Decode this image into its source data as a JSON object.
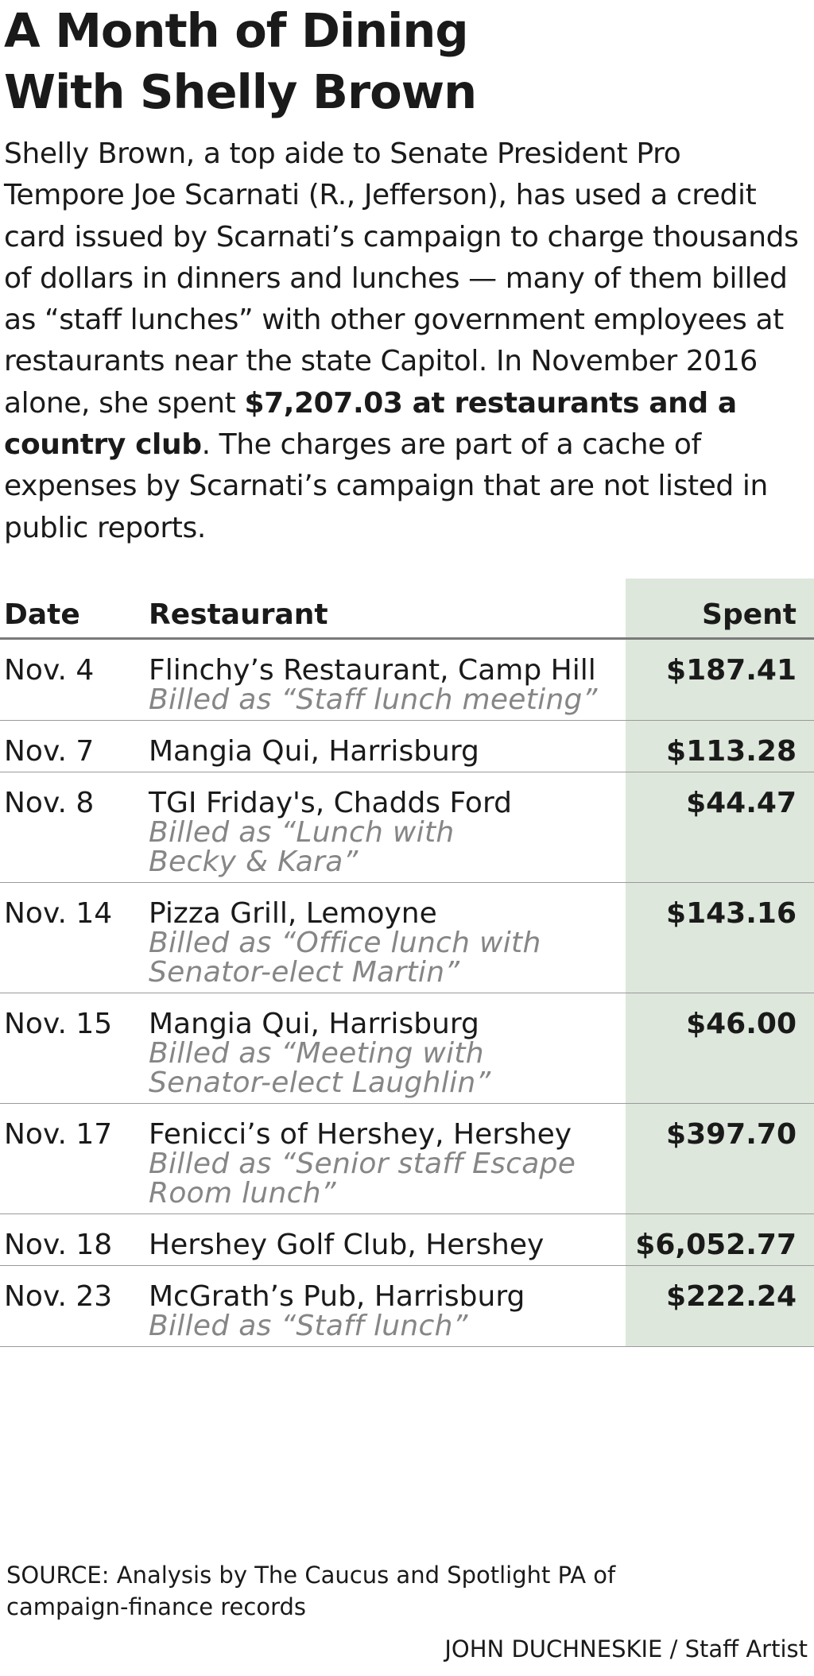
{
  "title": {
    "line1": "A Month of Dining",
    "line2": "With Shelly Brown"
  },
  "intro": {
    "text_before": "Shelly Brown, a top aide to Senate President Pro Tempore Joe Scarnati (R., Jefferson), has used a credit card issued by Scarnati’s campaign to charge thousands of dollars in dinners and lunches — many of them billed as “staff lunches” with other government employees at restaurants near the state Capitol. In November 2016 alone, she spent ",
    "text_bold": "$7,207.03 at restaurants and a country club",
    "text_after": ". The charges are part of a cache of expenses by Scarnati’s campaign that are not listed in public reports."
  },
  "chart_data": {
    "type": "table",
    "columns": [
      "Date",
      "Restaurant",
      "Spent"
    ],
    "rows": [
      {
        "date": "Nov. 4",
        "restaurant": "Flinchy’s Restaurant, Camp Hill",
        "billed": [
          "Billed as “Staff lunch meeting”"
        ],
        "spent": "$187.41"
      },
      {
        "date": "Nov. 7",
        "restaurant": "Mangia Qui, Harrisburg",
        "billed": [],
        "spent": "$113.28"
      },
      {
        "date": "Nov. 8",
        "restaurant": "TGI Friday's, Chadds Ford",
        "billed": [
          "Billed as “Lunch with",
          "Becky & Kara”"
        ],
        "spent": "$44.47"
      },
      {
        "date": "Nov. 14",
        "restaurant": "Pizza Grill, Lemoyne",
        "billed": [
          "Billed as “Office lunch with",
          "Senator-elect Martin”"
        ],
        "spent": "$143.16"
      },
      {
        "date": "Nov. 15",
        "restaurant": "Mangia Qui, Harrisburg",
        "billed": [
          "Billed as “Meeting with",
          "Senator-elect Laughlin”"
        ],
        "spent": "$46.00"
      },
      {
        "date": "Nov. 17",
        "restaurant": "Fenicci’s of Hershey, Hershey",
        "billed": [
          "Billed as “Senior staff Escape",
          "Room lunch”"
        ],
        "spent": "$397.70"
      },
      {
        "date": "Nov. 18",
        "restaurant": "Hershey Golf Club, Hershey",
        "billed": [],
        "spent": "$6,052.77"
      },
      {
        "date": "Nov. 23",
        "restaurant": "McGrath’s Pub, Harrisburg",
        "billed": [
          "Billed as “Staff lunch”"
        ],
        "spent": "$222.24"
      }
    ],
    "spent_column_color": "#dde7db",
    "billed_text_color": "#868686"
  },
  "footer": {
    "source": "SOURCE: Analysis by The Caucus and Spotlight PA of campaign-finance records",
    "credit": "JOHN DUCHNESKIE / Staff Artist"
  }
}
